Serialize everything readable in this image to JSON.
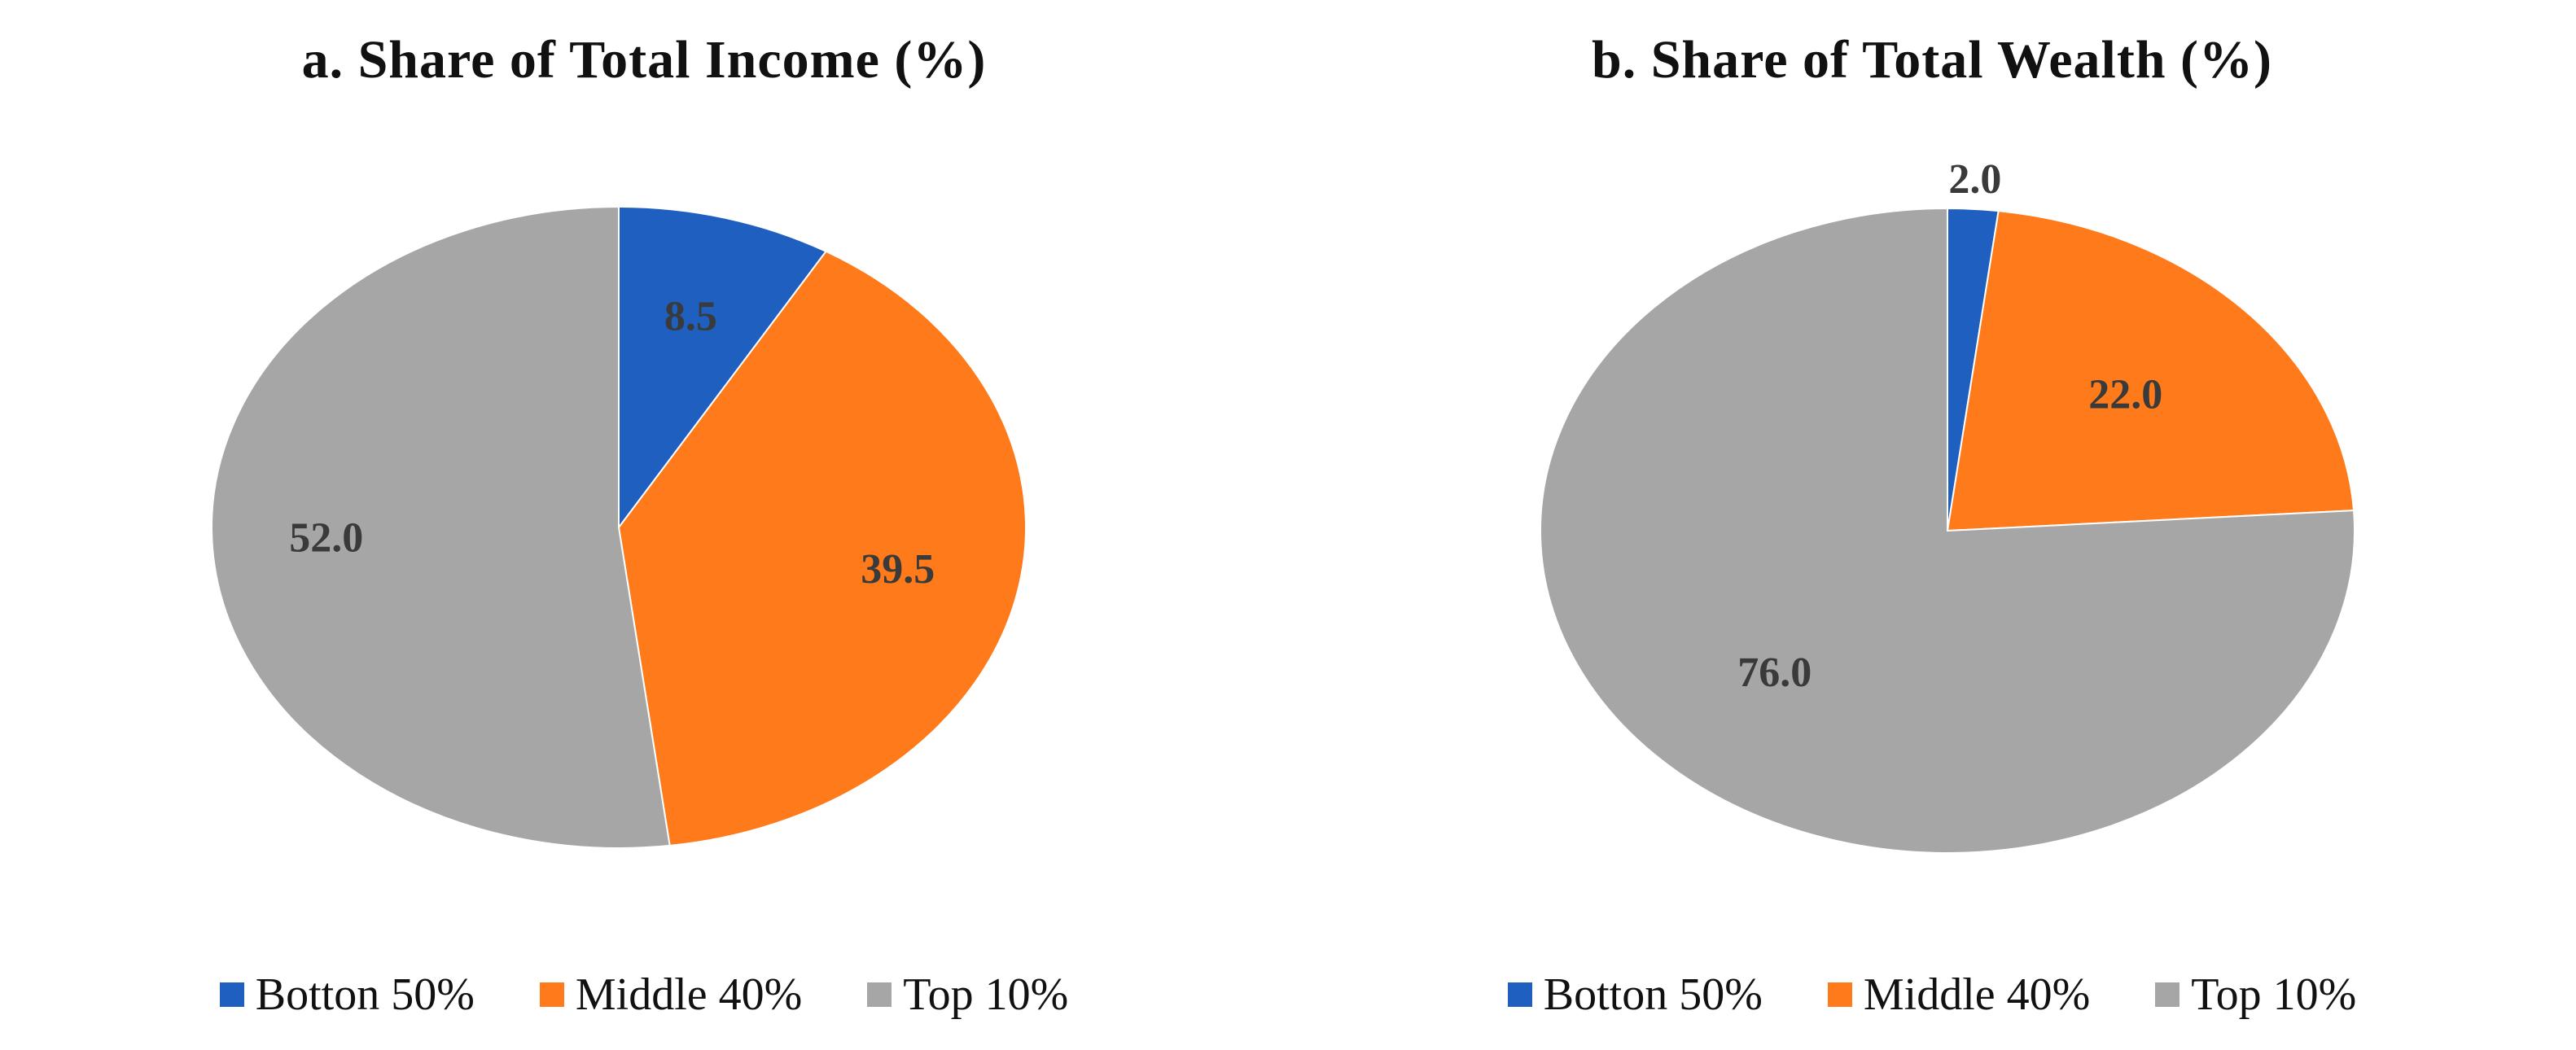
{
  "chart_data": [
    {
      "type": "pie",
      "title": "a. Share of Total Income (%)",
      "categories": [
        "Botton 50%",
        "Middle 40%",
        "Top 10%"
      ],
      "values": [
        8.5,
        39.5,
        52.0
      ],
      "data_labels": [
        "8.5",
        "39.5",
        "52.0"
      ],
      "colors": [
        "#1f5fbf",
        "#ff7a1a",
        "#a6a6a6"
      ],
      "legend_position": "bottom"
    },
    {
      "type": "pie",
      "title": "b. Share of Total Wealth (%)",
      "categories": [
        "Botton 50%",
        "Middle 40%",
        "Top 10%"
      ],
      "values": [
        2.0,
        22.0,
        76.0
      ],
      "data_labels": [
        "2.0",
        "22.0",
        "76.0"
      ],
      "colors": [
        "#1f5fbf",
        "#ff7a1a",
        "#a6a6a6"
      ],
      "legend_position": "bottom"
    }
  ]
}
